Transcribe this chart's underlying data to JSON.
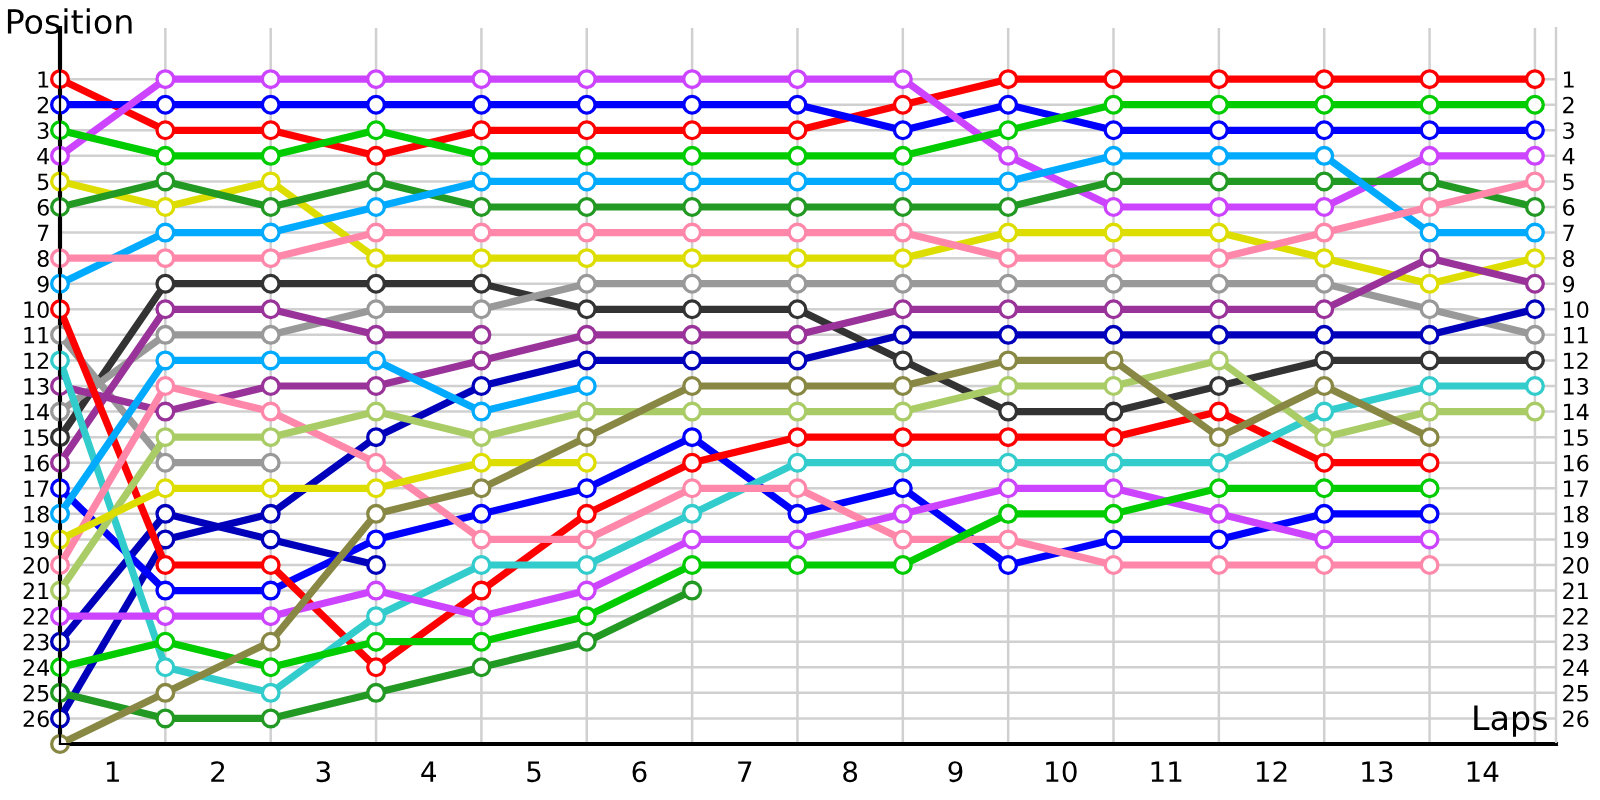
{
  "chart_data": {
    "type": "line",
    "xlabel": "Laps",
    "ylabel": "Position",
    "x": [
      0,
      1,
      2,
      3,
      4,
      5,
      6,
      7,
      8,
      9,
      10,
      11,
      12,
      13,
      14
    ],
    "xlim": [
      0,
      14.2
    ],
    "xticks": [
      {
        "value": 0.5,
        "label": "1"
      },
      {
        "value": 1.5,
        "label": "2"
      },
      {
        "value": 2.5,
        "label": "3"
      },
      {
        "value": 3.5,
        "label": "4"
      },
      {
        "value": 4.5,
        "label": "5"
      },
      {
        "value": 5.5,
        "label": "6"
      },
      {
        "value": 6.5,
        "label": "7"
      },
      {
        "value": 7.5,
        "label": "8"
      },
      {
        "value": 8.5,
        "label": "9"
      },
      {
        "value": 9.5,
        "label": "10"
      },
      {
        "value": 10.5,
        "label": "11"
      },
      {
        "value": 11.5,
        "label": "12"
      },
      {
        "value": 12.5,
        "label": "13"
      },
      {
        "value": 13.5,
        "label": "14"
      },
      {
        "value": 1,
        "label": null
      },
      {
        "value": 2,
        "label": null
      },
      {
        "value": 3,
        "label": null
      },
      {
        "value": 4,
        "label": null
      },
      {
        "value": 5,
        "label": null
      },
      {
        "value": 6,
        "label": null
      },
      {
        "value": 7,
        "label": null
      },
      {
        "value": 8,
        "label": null
      },
      {
        "value": 9,
        "label": null
      },
      {
        "value": 10,
        "label": null
      },
      {
        "value": 11,
        "label": null
      },
      {
        "value": 12,
        "label": null
      },
      {
        "value": 13,
        "label": null
      },
      {
        "value": 14,
        "label": null
      }
    ],
    "ylim": [
      27,
      -1
    ],
    "yticks": [
      1,
      2,
      3,
      4,
      5,
      6,
      7,
      8,
      9,
      10,
      11,
      12,
      13,
      14,
      15,
      16,
      17,
      18,
      19,
      20,
      21,
      22,
      23,
      24,
      25,
      26
    ],
    "y2lim": [
      27,
      -1
    ],
    "y2ticks": [
      1,
      2,
      3,
      4,
      5,
      6,
      7,
      8,
      9,
      10,
      11,
      12,
      13,
      14,
      15,
      16,
      17,
      18,
      19,
      20,
      21,
      22,
      23,
      24,
      25,
      26
    ],
    "grid": true,
    "legend": false,
    "marker": "circle",
    "line_style": "solid",
    "series": [
      {
        "color": "#ff0000",
        "values": [
          1,
          3,
          3,
          4,
          3,
          3,
          3,
          3,
          2,
          1,
          1,
          1,
          1,
          1,
          1
        ]
      },
      {
        "color": "#0000ff",
        "values": [
          2,
          2,
          2,
          2,
          2,
          2,
          2,
          2,
          3,
          2,
          3,
          3,
          3,
          3,
          3
        ]
      },
      {
        "color": "#cc44ff",
        "values": [
          4,
          1,
          1,
          1,
          1,
          1,
          1,
          1,
          1,
          4,
          6,
          6,
          6,
          4,
          4
        ]
      },
      {
        "color": "#00cc00",
        "values": [
          3,
          4,
          4,
          3,
          4,
          4,
          4,
          4,
          4,
          3,
          2,
          2,
          2,
          2,
          2
        ]
      },
      {
        "color": "#dddd00",
        "values": [
          5,
          6,
          5,
          8,
          8,
          8,
          8,
          8,
          8,
          7,
          7,
          7,
          8,
          9,
          8
        ]
      },
      {
        "color": "#229922",
        "values": [
          6,
          5,
          6,
          5,
          6,
          6,
          6,
          6,
          6,
          6,
          5,
          5,
          5,
          5,
          6
        ]
      },
      {
        "color": "#00aaff",
        "values": [
          9,
          7,
          7,
          6,
          5,
          5,
          5,
          5,
          5,
          5,
          4,
          4,
          4,
          7,
          7
        ]
      },
      {
        "color": "#ff88aa",
        "values": [
          8,
          8,
          8,
          7,
          7,
          7,
          7,
          7,
          7,
          8,
          8,
          8,
          7,
          6,
          5
        ]
      },
      {
        "color": "#333333",
        "values": [
          15,
          9,
          9,
          9,
          9,
          10,
          10,
          10,
          12,
          14,
          14,
          13,
          12,
          12,
          12
        ]
      },
      {
        "color": "#999999",
        "values": [
          14,
          11,
          11,
          10,
          10,
          9,
          9,
          9,
          9,
          9,
          9,
          9,
          9,
          10,
          11
        ]
      },
      {
        "color": "#999999",
        "values": [
          11,
          16,
          16,
          null,
          null,
          null,
          null,
          null,
          null,
          null,
          null,
          null,
          null,
          null,
          null
        ]
      },
      {
        "color": "#993399",
        "values": [
          16,
          10,
          10,
          11,
          11,
          null,
          null,
          null,
          null,
          null,
          null,
          null,
          null,
          null,
          null
        ]
      },
      {
        "color": "#993399",
        "values": [
          13,
          14,
          13,
          13,
          12,
          11,
          11,
          11,
          10,
          10,
          10,
          10,
          10,
          8,
          9
        ]
      },
      {
        "color": "#0000bb",
        "values": [
          26,
          19,
          18,
          15,
          13,
          12,
          12,
          12,
          11,
          11,
          11,
          11,
          11,
          11,
          10
        ]
      },
      {
        "color": "#0000bb",
        "values": [
          23,
          18,
          19,
          20,
          null,
          null,
          null,
          null,
          null,
          null,
          null,
          null,
          null,
          null,
          null
        ]
      },
      {
        "color": "#0000ff",
        "values": [
          17,
          21,
          21,
          19,
          18,
          17,
          15,
          18,
          17,
          20,
          19,
          19,
          18,
          18,
          null
        ]
      },
      {
        "color": "#ff0000",
        "values": [
          10,
          20,
          20,
          24,
          21,
          18,
          16,
          15,
          15,
          15,
          15,
          14,
          16,
          16,
          null
        ]
      },
      {
        "color": "#33cccc",
        "values": [
          12,
          24,
          25,
          22,
          20,
          20,
          18,
          16,
          16,
          16,
          16,
          16,
          14,
          13,
          13
        ]
      },
      {
        "color": "#00aaff",
        "values": [
          18,
          12,
          12,
          12,
          14,
          13,
          null,
          null,
          null,
          null,
          null,
          null,
          null,
          null,
          null
        ]
      },
      {
        "color": "#ff88aa",
        "values": [
          20,
          13,
          14,
          16,
          19,
          19,
          17,
          17,
          19,
          19,
          20,
          20,
          20,
          20,
          null
        ]
      },
      {
        "color": "#aacc66",
        "values": [
          21,
          15,
          15,
          14,
          15,
          14,
          14,
          14,
          14,
          13,
          13,
          12,
          15,
          14,
          14
        ]
      },
      {
        "color": "#dddd00",
        "values": [
          19,
          17,
          17,
          17,
          16,
          16,
          null,
          null,
          null,
          null,
          null,
          null,
          null,
          null,
          null
        ]
      },
      {
        "color": "#cc44ff",
        "values": [
          22,
          22,
          22,
          21,
          22,
          21,
          19,
          19,
          18,
          17,
          17,
          18,
          19,
          19,
          null
        ]
      },
      {
        "color": "#00cc00",
        "values": [
          24,
          23,
          24,
          23,
          23,
          22,
          20,
          20,
          20,
          18,
          18,
          17,
          17,
          17,
          null
        ]
      },
      {
        "color": "#229922",
        "values": [
          25,
          26,
          26,
          25,
          24,
          23,
          21,
          null,
          null,
          null,
          null,
          null,
          null,
          null,
          null
        ]
      },
      {
        "color": "#888844",
        "values": [
          27,
          25,
          23,
          18,
          17,
          15,
          13,
          13,
          13,
          12,
          12,
          15,
          13,
          15,
          null
        ]
      }
    ]
  }
}
